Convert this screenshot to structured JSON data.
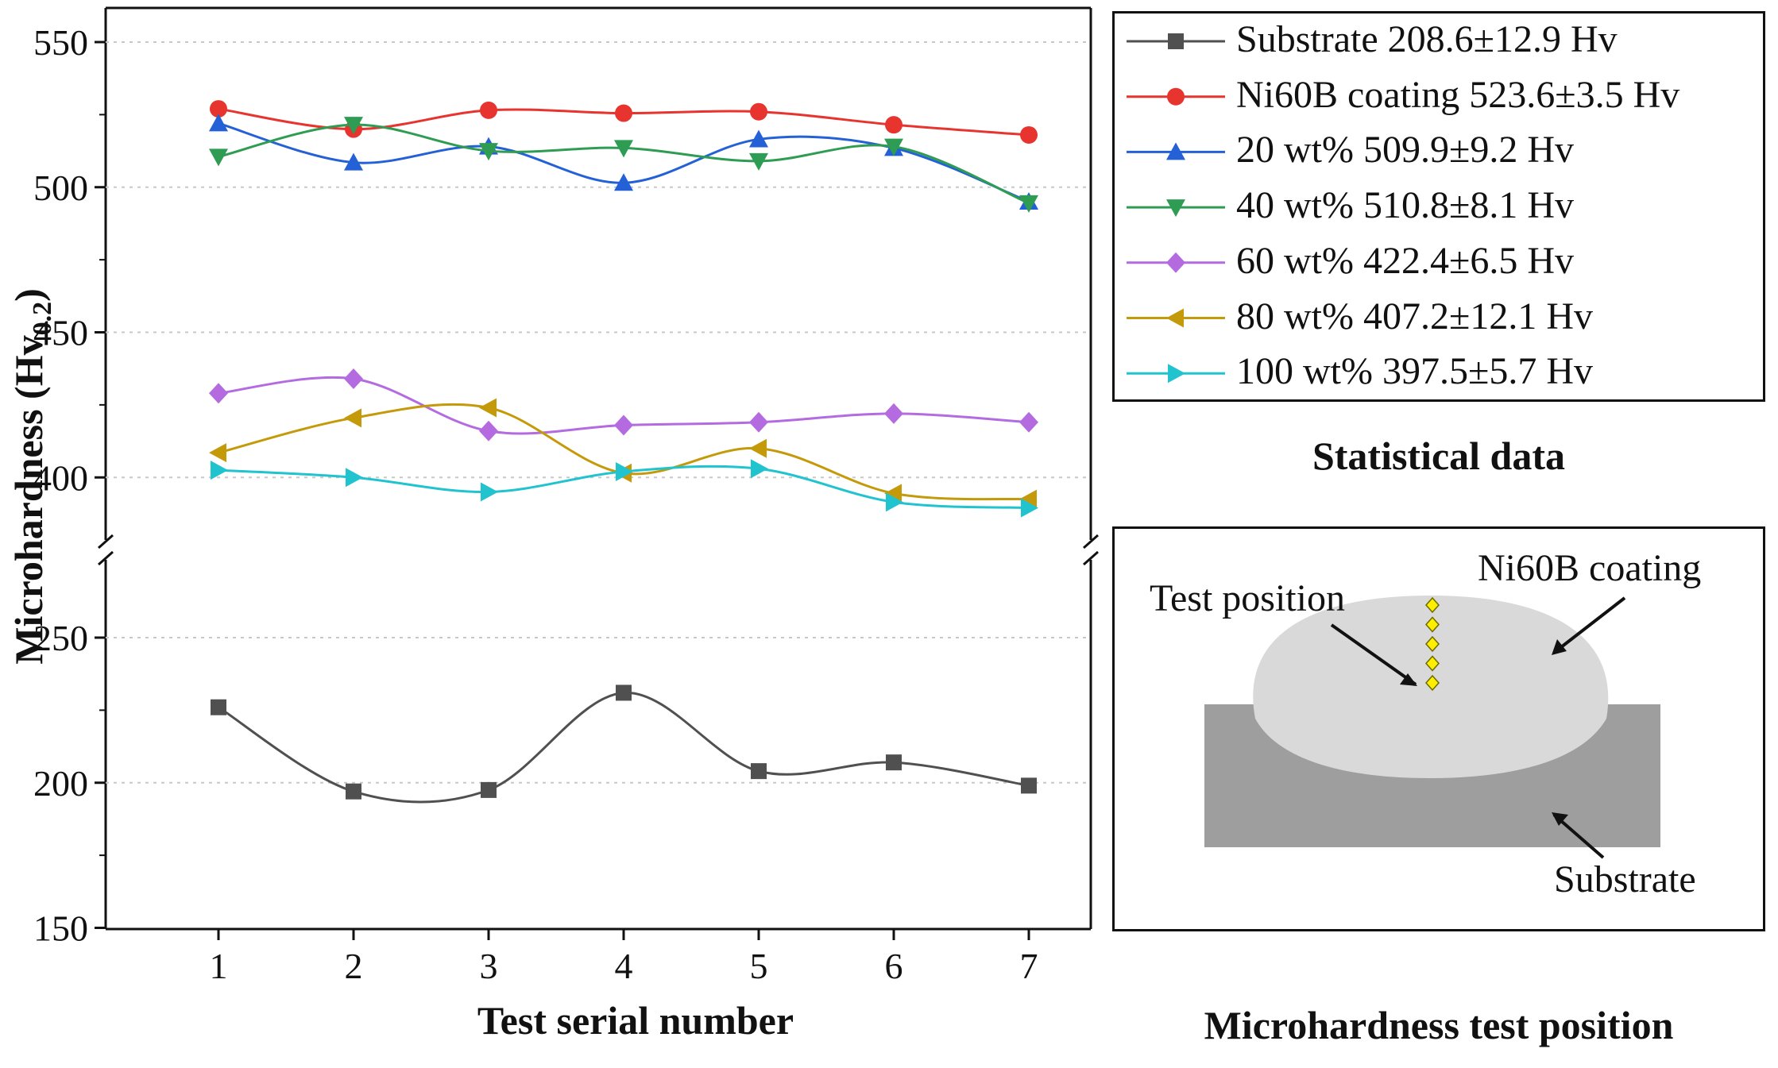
{
  "chart_data": {
    "type": "line",
    "xlabel": "Test serial number",
    "ylabel_main": "Microhardness (Hv",
    "ylabel_sub": "0.2",
    "ylabel_close": ")",
    "x": [
      1,
      2,
      3,
      4,
      5,
      6,
      7
    ],
    "x_ticks": [
      "1",
      "2",
      "3",
      "4",
      "5",
      "6",
      "7"
    ],
    "y_axis": {
      "break": true,
      "upper_range": [
        385,
        550
      ],
      "lower_range": [
        150,
        260
      ],
      "upper_ticks": [
        "550",
        "500",
        "450",
        "400"
      ],
      "lower_ticks": [
        "250",
        "200",
        "150"
      ]
    },
    "series": [
      {
        "name": "Substrate 208.6±12.9 Hv",
        "color": "#505050",
        "marker": "square",
        "values": [
          226,
          197,
          197.5,
          231,
          204,
          207,
          199
        ]
      },
      {
        "name": "Ni60B coating 523.6±3.5 Hv",
        "color": "#e8342f",
        "marker": "circle",
        "values": [
          527,
          520,
          526.5,
          525.5,
          526,
          521.5,
          518
        ]
      },
      {
        "name": "20 wt% 509.9±9.2 Hv",
        "color": "#2460d6",
        "marker": "triangle-up",
        "values": [
          522,
          508.5,
          514,
          501.5,
          516.5,
          513.5,
          495
        ]
      },
      {
        "name": "40 wt% 510.8±8.1 Hv",
        "color": "#2e9c52",
        "marker": "triangle-down",
        "values": [
          510.5,
          521.5,
          512.5,
          513.5,
          509,
          514,
          494.5
        ]
      },
      {
        "name": "60 wt% 422.4±6.5 Hv",
        "color": "#b46be0",
        "marker": "diamond",
        "values": [
          429,
          434,
          416,
          418,
          419,
          422,
          419
        ]
      },
      {
        "name": "80 wt% 407.2±12.1 Hv",
        "color": "#c59a0a",
        "marker": "triangle-left",
        "values": [
          408.5,
          420.5,
          424,
          401.5,
          410,
          394.5,
          392.5
        ]
      },
      {
        "name": "100 wt% 397.5±5.7 Hv",
        "color": "#21c3cf",
        "marker": "triangle-right",
        "values": [
          402.5,
          400,
          395,
          402,
          403,
          391.5,
          389.5
        ]
      }
    ],
    "legend_title": "Statistical data"
  },
  "schematic": {
    "title": "Microhardness test position",
    "coating_label": "Ni60B coating",
    "test_position_label": "Test position",
    "substrate_label": "Substrate",
    "point_count": 5,
    "colors": {
      "coating": "#d9d9d9",
      "substrate": "#9e9e9e",
      "points": "#ffee00"
    }
  }
}
